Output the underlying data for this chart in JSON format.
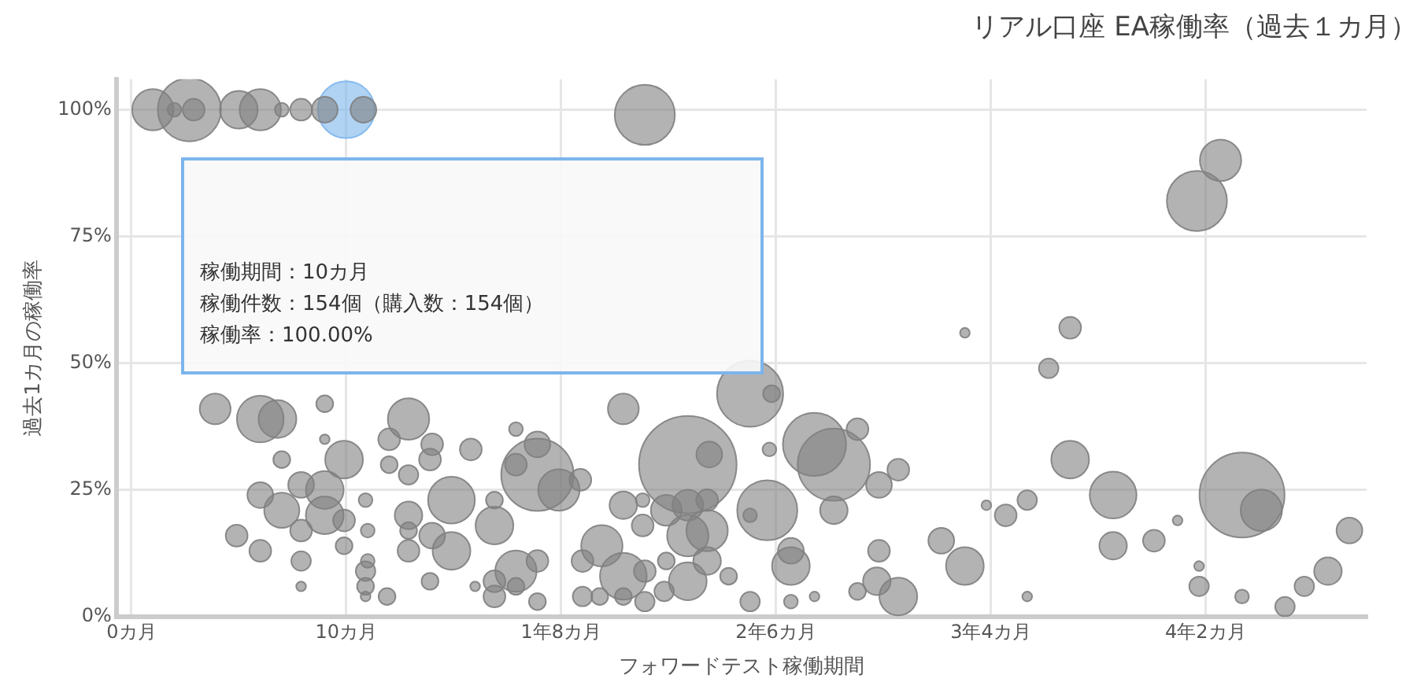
{
  "chart_data": {
    "type": "bubble",
    "title": "リアル口座 EA稼働率（過去１カ月）",
    "xlabel": "フォワードテスト稼働期間",
    "ylabel": "過去1カ月の稼働率",
    "xlim": [
      -0.7,
      57.5
    ],
    "ylim": [
      0,
      106
    ],
    "xticks": [
      {
        "value": 0,
        "label": "0カ月"
      },
      {
        "value": 10,
        "label": "10カ月"
      },
      {
        "value": 20,
        "label": "1年8カ月"
      },
      {
        "value": 30,
        "label": "2年6カ月"
      },
      {
        "value": 40,
        "label": "3年4カ月"
      },
      {
        "value": 50,
        "label": "4年2カ月"
      }
    ],
    "yticks": [
      {
        "value": 0,
        "label": "0%"
      },
      {
        "value": 25,
        "label": "25%"
      },
      {
        "value": 50,
        "label": "50%"
      },
      {
        "value": 75,
        "label": "75%"
      },
      {
        "value": 100,
        "label": "100%"
      }
    ],
    "grid": true,
    "legend": false,
    "annotations": [
      "稼働期間：10カ月",
      "稼働件数：154個（購入数：154個）",
      "稼働率：100.00%"
    ],
    "series": [
      {
        "color": "#808080",
        "x": [
          1.0,
          2.0,
          2.7,
          2.9,
          5.0,
          6.0,
          7.0,
          7.9,
          9.0,
          10.8,
          3.9,
          6.0,
          6.8,
          7.0,
          9.0,
          9.0,
          9.9,
          9.0,
          9.0,
          7.9,
          6.0,
          7.0,
          4.9,
          6.0,
          7.9,
          7.9,
          7.9,
          9.9,
          9.9,
          10.9,
          11.0,
          11.0,
          10.9,
          10.9,
          10.9,
          11.9,
          12.0,
          12.9,
          14.0,
          13.9,
          12.0,
          12.9,
          12.9,
          12.9,
          12.9,
          14.0,
          13.9,
          14.9,
          15.8,
          17.9,
          18.9,
          18.9,
          17.9,
          19.9,
          20.9,
          16.9,
          16.9,
          14.9,
          16.9,
          17.9,
          18.9,
          16.9,
          17.9,
          18.9,
          16.0,
          21.0,
          21.9,
          21.0,
          21.8,
          22.9,
          22.9,
          23.9,
          23.9,
          22.9,
          22.9,
          23.8,
          23.8,
          24.9,
          24.9,
          24.8,
          25.9,
          26.9,
          25.9,
          25.9,
          26.8,
          26.8,
          26.8,
          25.9,
          27.8,
          28.8,
          29.8,
          29.7,
          29.6,
          28.8,
          30.7,
          30.7,
          28.8,
          30.7,
          31.8,
          31.8,
          32.7,
          33.8,
          32.7,
          34.8,
          35.7,
          34.8,
          34.7,
          35.7,
          33.8,
          37.7,
          38.8,
          39.8,
          40.7,
          41.7,
          41.7,
          43.7,
          45.7,
          45.7,
          47.6,
          48.7,
          49.7,
          49.7,
          51.7,
          52.6,
          51.7,
          53.7,
          54.6,
          55.7,
          56.7,
          38.8,
          43.7,
          42.7,
          49.6,
          50.7,
          23.9
        ],
        "values": [
          100,
          100,
          100,
          100,
          100,
          100,
          100,
          100,
          100,
          100,
          41,
          39,
          39,
          31,
          42,
          35,
          31,
          25,
          20,
          26,
          24,
          21,
          16,
          13,
          17,
          11,
          6,
          19,
          14,
          23,
          17,
          11,
          9,
          6,
          4,
          4,
          35,
          39,
          34,
          31,
          30,
          28,
          20,
          17,
          13,
          16,
          7,
          23,
          33,
          37,
          34,
          28,
          30,
          25,
          27,
          23,
          18,
          13,
          7,
          9,
          11,
          4,
          6,
          3,
          6,
          11,
          14,
          4,
          4,
          8,
          4,
          9,
          3,
          41,
          22,
          23,
          18,
          21,
          11,
          5,
          30,
          32,
          22,
          16,
          23,
          17,
          11,
          7,
          8,
          44,
          44,
          33,
          21,
          20,
          13,
          10,
          3,
          3,
          4,
          34,
          30,
          37,
          21,
          26,
          29,
          13,
          7,
          4,
          5,
          15,
          10,
          22,
          20,
          23,
          4,
          31,
          24,
          14,
          15,
          19,
          10,
          6,
          24,
          21,
          4,
          2,
          6,
          9,
          17,
          56,
          57,
          49,
          82,
          90,
          99
        ],
        "sizes": [
          0.18,
          0.02,
          0.42,
          0.05,
          0.15,
          0.18,
          0.02,
          0.05,
          0.07,
          0.07,
          0.1,
          0.23,
          0.15,
          0.03,
          0.03,
          0.01,
          0.15,
          0.15,
          0.15,
          0.07,
          0.07,
          0.13,
          0.05,
          0.05,
          0.05,
          0.04,
          0.01,
          0.05,
          0.03,
          0.02,
          0.02,
          0.02,
          0.04,
          0.03,
          0.01,
          0.03,
          0.05,
          0.18,
          0.05,
          0.05,
          0.03,
          0.04,
          0.08,
          0.03,
          0.05,
          0.07,
          0.03,
          0.23,
          0.05,
          0.02,
          0.07,
          0.55,
          0.05,
          0.18,
          0.05,
          0.03,
          0.15,
          0.15,
          0.05,
          0.18,
          0.05,
          0.05,
          0.03,
          0.03,
          0.01,
          0.05,
          0.18,
          0.04,
          0.03,
          0.23,
          0.03,
          0.05,
          0.04,
          0.1,
          0.08,
          0.02,
          0.05,
          0.1,
          0.03,
          0.04,
          1,
          0.07,
          0.1,
          0.18,
          0.05,
          0.18,
          0.08,
          0.15,
          0.03,
          0.46,
          0.03,
          0.02,
          0.38,
          0.02,
          0.07,
          0.15,
          0.04,
          0.02,
          0.01,
          0.42,
          0.55,
          0.05,
          0.08,
          0.07,
          0.05,
          0.05,
          0.08,
          0.15,
          0.03,
          0.07,
          0.15,
          0.01,
          0.05,
          0.04,
          0.01,
          0.15,
          0.23,
          0.08,
          0.05,
          0.01,
          0.01,
          0.04,
          0.76,
          0.18,
          0.02,
          0.04,
          0.04,
          0.08,
          0.07,
          0.01,
          0.05,
          0.04,
          0.38,
          0.18,
          0.38
        ]
      },
      {
        "color": "#7cb5ec",
        "x": [
          10
        ],
        "values": [
          100
        ],
        "sizes": [
          0.34
        ]
      }
    ]
  }
}
